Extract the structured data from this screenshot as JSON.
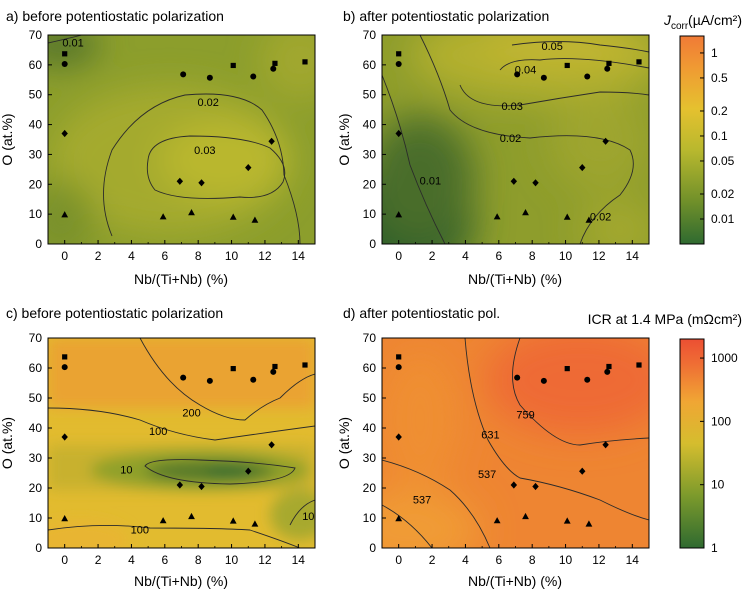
{
  "colors": {
    "dark_green": "#2e6b2f",
    "green": "#6f8f2a",
    "yellow_green": "#b7b62e",
    "yellow": "#e2bf2e",
    "orange": "#f08a2f",
    "red_orange": "#ef5a34",
    "contour": "#2b2b2b",
    "marker": "#000000"
  },
  "colorbars": {
    "top": {
      "title_prefix": "J",
      "title_sub": "corr",
      "title_units": "(µA/cm²)",
      "scale": "log",
      "ticks": [
        "1",
        "0.5",
        "0.2",
        "0.1",
        "0.05",
        "0.02",
        "0.01"
      ]
    },
    "bottom": {
      "title": "ICR at 1.4 MPa (mΩcm²)",
      "scale": "log",
      "ticks": [
        "1000",
        "100",
        "10",
        "1"
      ]
    }
  },
  "chart_data": [
    {
      "type": "heatmap",
      "panel": "a",
      "title": "a) before potentiostatic polarization",
      "xlabel": "Nb/(Ti+Nb) (%)",
      "ylabel": "O (at.%)",
      "xlim": [
        -1,
        15
      ],
      "ylim": [
        0,
        70
      ],
      "xticks": [
        "0",
        "2",
        "4",
        "6",
        "8",
        "10",
        "12",
        "14"
      ],
      "yticks": [
        "0",
        "10",
        "20",
        "30",
        "40",
        "50",
        "60",
        "70"
      ],
      "colorscale": "green-yellow-orange (log, J_corr)",
      "contour_labels": [
        {
          "x": 0.5,
          "y": 67.5,
          "text": "0.01"
        },
        {
          "x": 8.6,
          "y": 47.5,
          "text": "0.02"
        },
        {
          "x": 8.4,
          "y": 31.5,
          "text": "0.03"
        }
      ],
      "markers": {
        "square": [
          [
            0,
            63.7
          ],
          [
            10.1,
            59.8
          ],
          [
            12.6,
            60.5
          ],
          [
            14.4,
            61
          ]
        ],
        "circle": [
          [
            0,
            60.3
          ],
          [
            7.1,
            56.8
          ],
          [
            8.7,
            55.7
          ],
          [
            11.3,
            56.1
          ],
          [
            12.5,
            58.7
          ]
        ],
        "diamond": [
          [
            0,
            37
          ],
          [
            6.9,
            21
          ],
          [
            8.2,
            20.5
          ],
          [
            11.0,
            25.6
          ],
          [
            12.4,
            34.4
          ]
        ],
        "triangle": [
          [
            0,
            9.8
          ],
          [
            5.9,
            9.1
          ],
          [
            7.6,
            10.5
          ],
          [
            10.1,
            9
          ],
          [
            11.4,
            8
          ]
        ]
      }
    },
    {
      "type": "heatmap",
      "panel": "b",
      "title": "b) after potentiostatic polarization",
      "xlabel": "Nb/(Ti+Nb) (%)",
      "ylabel": "O (at.%)",
      "xlim": [
        -1,
        15
      ],
      "ylim": [
        0,
        70
      ],
      "xticks": [
        "0",
        "2",
        "4",
        "6",
        "8",
        "10",
        "12",
        "14"
      ],
      "yticks": [
        "0",
        "10",
        "20",
        "30",
        "40",
        "50",
        "60",
        "70"
      ],
      "colorscale": "green-yellow-orange (log, J_corr)",
      "contour_labels": [
        {
          "x": 9.2,
          "y": 66.3,
          "text": "0.05"
        },
        {
          "x": 7.6,
          "y": 58.5,
          "text": "0.04"
        },
        {
          "x": 6.8,
          "y": 46.3,
          "text": "0.03"
        },
        {
          "x": 6.7,
          "y": 35.5,
          "text": "0.02"
        },
        {
          "x": 1.9,
          "y": 21.2,
          "text": "0.01"
        },
        {
          "x": 12.1,
          "y": 9.2,
          "text": "0.02"
        }
      ],
      "markers": {
        "square": [
          [
            0,
            63.7
          ],
          [
            10.1,
            59.8
          ],
          [
            12.6,
            60.5
          ],
          [
            14.4,
            61
          ]
        ],
        "circle": [
          [
            0,
            60.3
          ],
          [
            7.1,
            56.8
          ],
          [
            8.7,
            55.7
          ],
          [
            11.3,
            56.1
          ],
          [
            12.5,
            58.7
          ]
        ],
        "diamond": [
          [
            0,
            37
          ],
          [
            6.9,
            21
          ],
          [
            8.2,
            20.5
          ],
          [
            11.0,
            25.6
          ],
          [
            12.4,
            34.4
          ]
        ],
        "triangle": [
          [
            0,
            9.8
          ],
          [
            5.9,
            9.1
          ],
          [
            7.6,
            10.5
          ],
          [
            10.1,
            9
          ],
          [
            11.4,
            8
          ]
        ]
      }
    },
    {
      "type": "heatmap",
      "panel": "c",
      "title": "c) before potentiostatic polarization",
      "xlabel": "Nb/(Ti+Nb) (%)",
      "ylabel": "O (at.%)",
      "xlim": [
        -1,
        15
      ],
      "ylim": [
        0,
        70
      ],
      "xticks": [
        "0",
        "2",
        "4",
        "6",
        "8",
        "10",
        "12",
        "14"
      ],
      "yticks": [
        "0",
        "10",
        "20",
        "30",
        "40",
        "50",
        "60",
        "70"
      ],
      "colorscale": "green-yellow-orange-red (log, ICR)",
      "contour_labels": [
        {
          "x": 7.6,
          "y": 45.2,
          "text": "200"
        },
        {
          "x": 5.6,
          "y": 39.0,
          "text": "100"
        },
        {
          "x": 3.7,
          "y": 26.2,
          "text": "10"
        },
        {
          "x": 14.6,
          "y": 10.6,
          "text": "10"
        },
        {
          "x": 4.5,
          "y": 6.2,
          "text": "100"
        }
      ],
      "markers": {
        "square": [
          [
            0,
            63.7
          ],
          [
            10.1,
            59.8
          ],
          [
            12.6,
            60.5
          ],
          [
            14.4,
            61
          ]
        ],
        "circle": [
          [
            0,
            60.3
          ],
          [
            7.1,
            56.8
          ],
          [
            8.7,
            55.7
          ],
          [
            11.3,
            56.1
          ],
          [
            12.5,
            58.7
          ]
        ],
        "diamond": [
          [
            0,
            37
          ],
          [
            6.9,
            21
          ],
          [
            8.2,
            20.5
          ],
          [
            11.0,
            25.6
          ],
          [
            12.4,
            34.4
          ]
        ],
        "triangle": [
          [
            0,
            9.8
          ],
          [
            5.9,
            9.1
          ],
          [
            7.6,
            10.5
          ],
          [
            10.1,
            9
          ],
          [
            11.4,
            8
          ]
        ]
      }
    },
    {
      "type": "heatmap",
      "panel": "d",
      "title": "d) after potentiostatic pol.",
      "xlabel": "Nb/(Ti+Nb) (%)",
      "ylabel": "O (at.%)",
      "xlim": [
        -1,
        15
      ],
      "ylim": [
        0,
        70
      ],
      "xticks": [
        "0",
        "2",
        "4",
        "6",
        "8",
        "10",
        "12",
        "14"
      ],
      "yticks": [
        "0",
        "10",
        "20",
        "30",
        "40",
        "50",
        "60",
        "70"
      ],
      "colorscale": "green-yellow-orange-red (log, ICR)",
      "contour_labels": [
        {
          "x": 7.6,
          "y": 44.5,
          "text": "759"
        },
        {
          "x": 5.5,
          "y": 37.8,
          "text": "631"
        },
        {
          "x": 5.3,
          "y": 24.7,
          "text": "537"
        },
        {
          "x": 1.4,
          "y": 16.1,
          "text": "537"
        }
      ],
      "markers": {
        "square": [
          [
            0,
            63.7
          ],
          [
            10.1,
            59.8
          ],
          [
            12.6,
            60.5
          ],
          [
            14.4,
            61
          ]
        ],
        "circle": [
          [
            0,
            60.3
          ],
          [
            7.1,
            56.8
          ],
          [
            8.7,
            55.7
          ],
          [
            11.3,
            56.1
          ],
          [
            12.5,
            58.7
          ]
        ],
        "diamond": [
          [
            0,
            37
          ],
          [
            6.9,
            21
          ],
          [
            8.2,
            20.5
          ],
          [
            11.0,
            25.6
          ],
          [
            12.4,
            34.4
          ]
        ],
        "triangle": [
          [
            0,
            9.8
          ],
          [
            5.9,
            9.1
          ],
          [
            7.6,
            10.5
          ],
          [
            10.1,
            9
          ],
          [
            11.4,
            8
          ]
        ]
      }
    }
  ]
}
